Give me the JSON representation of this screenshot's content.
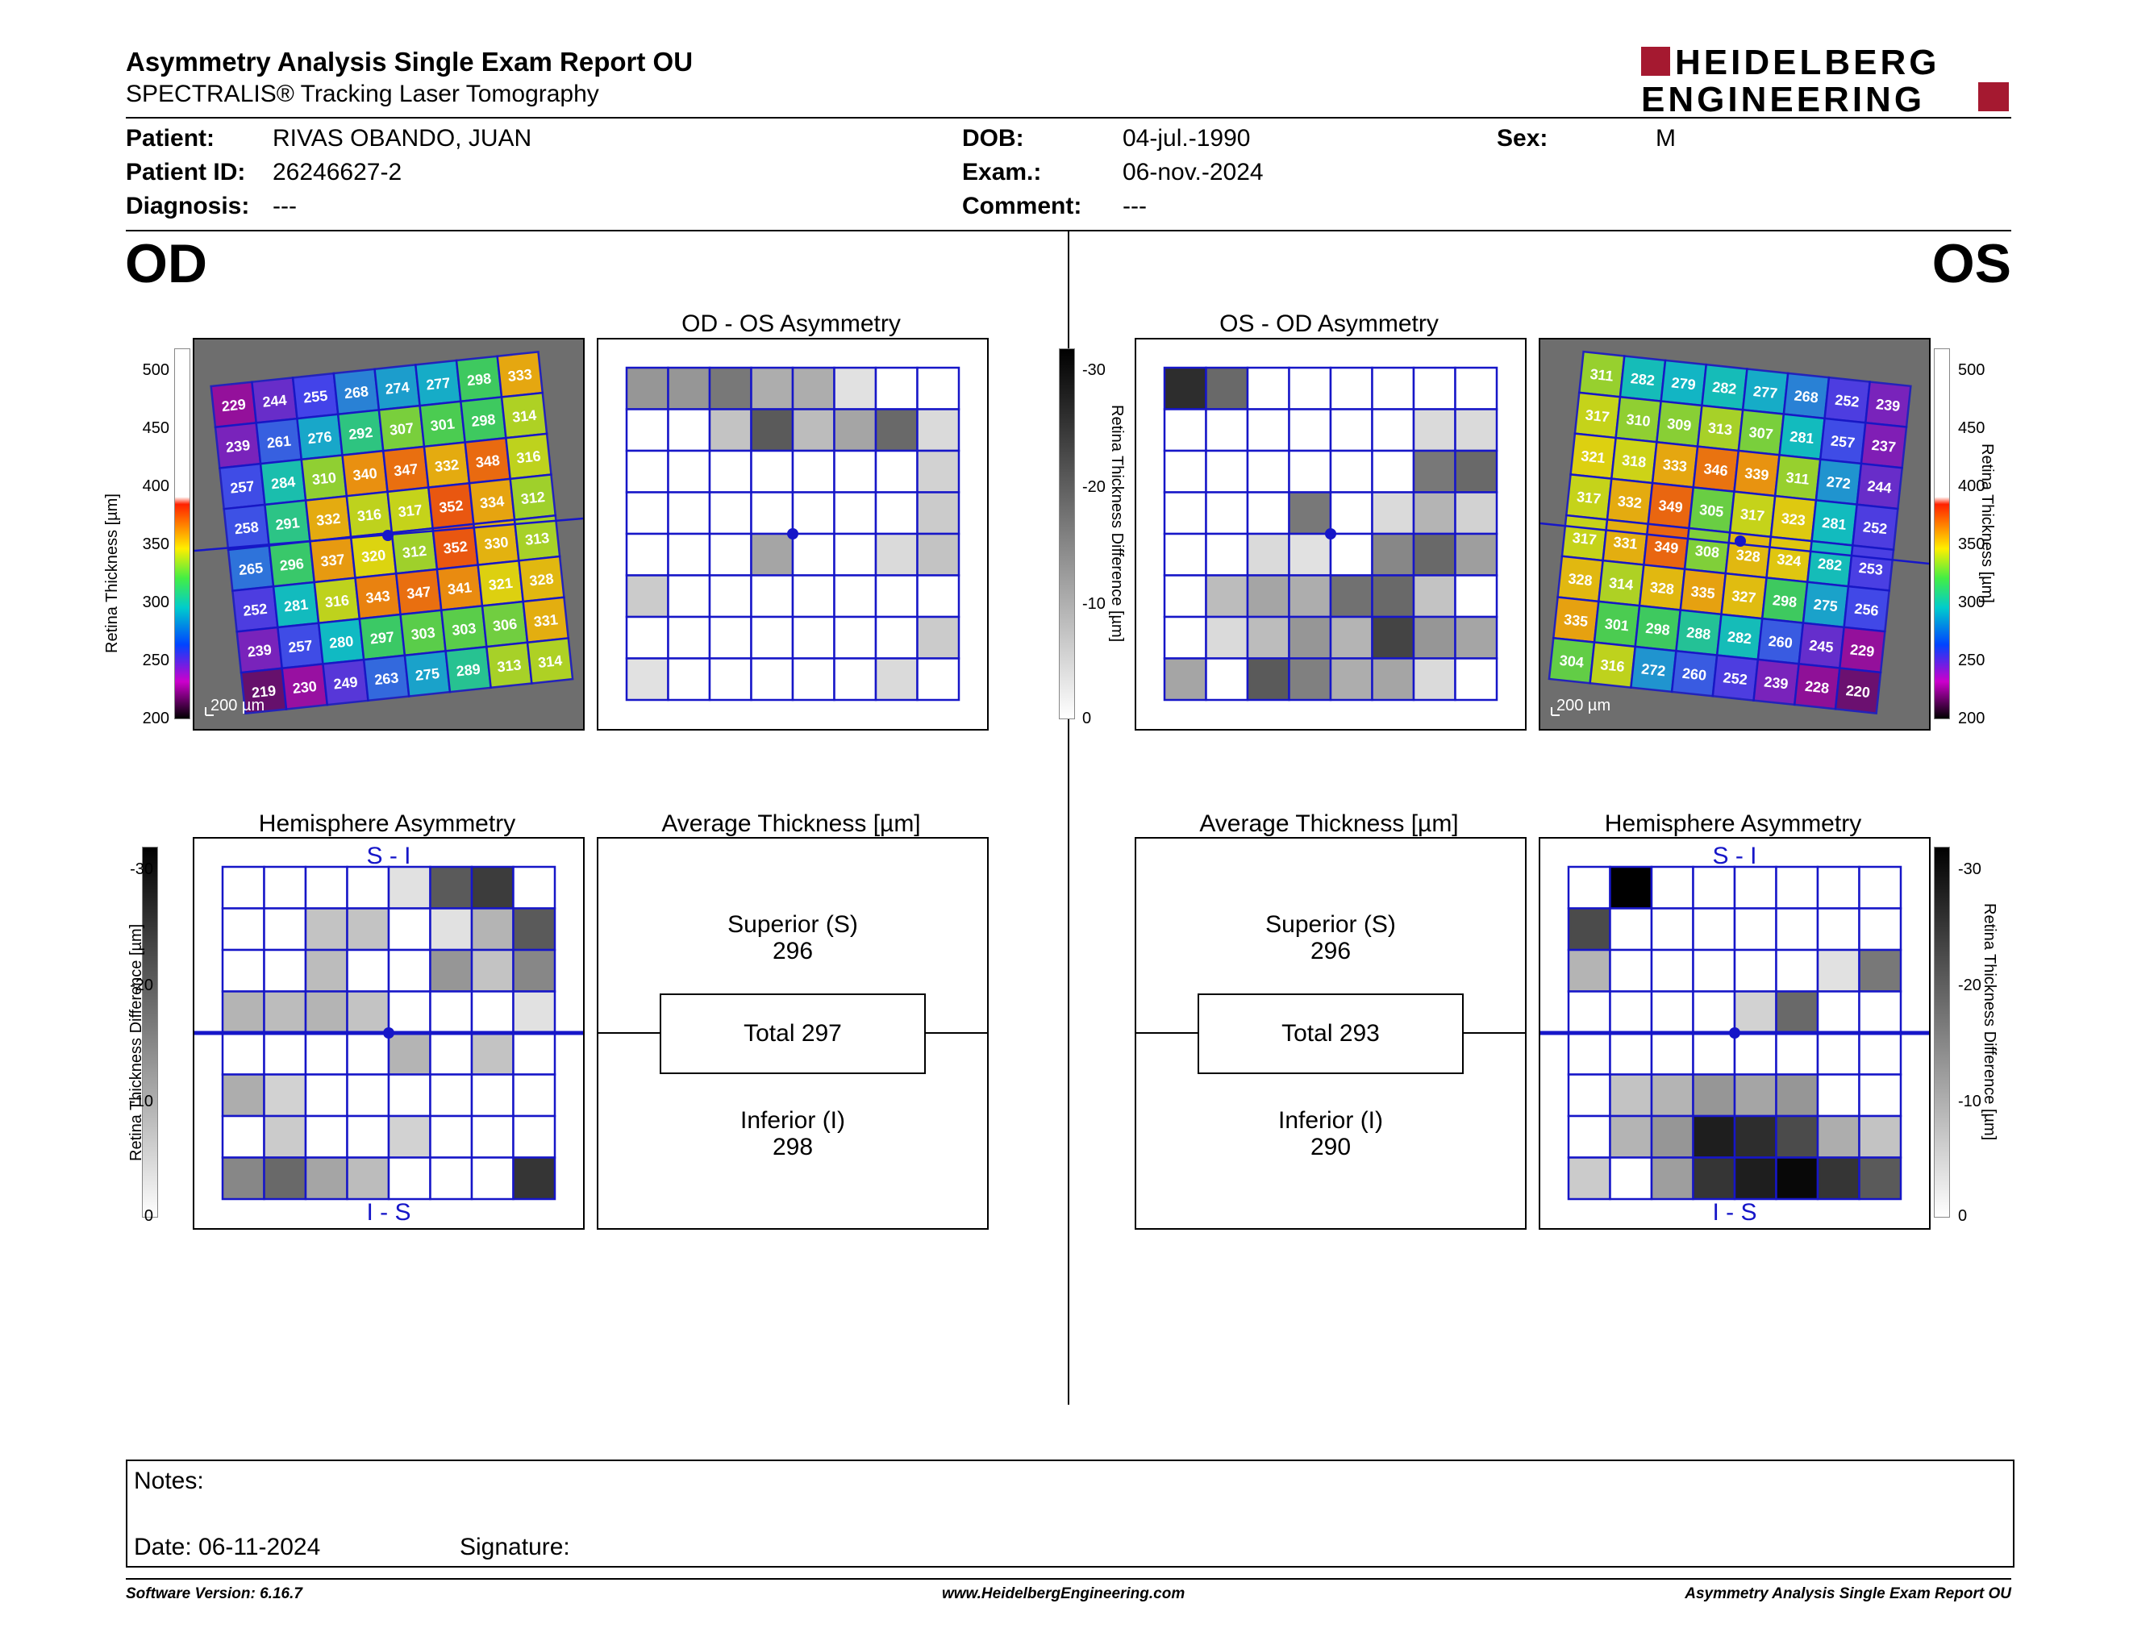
{
  "header": {
    "title": "Asymmetry Analysis Single Exam Report OU",
    "subtitle": "SPECTRALIS® Tracking Laser Tomography",
    "logo_line1": "HEIDELBERG",
    "logo_line2": "ENGINEERING",
    "logo_color": "#a51930"
  },
  "patient": {
    "patient_label": "Patient:",
    "patient_name": "RIVAS OBANDO, JUAN",
    "id_label": "Patient ID:",
    "id_value": "26246627-2",
    "diagnosis_label": "Diagnosis:",
    "diagnosis_value": "---",
    "dob_label": "DOB:",
    "dob_value": "04-jul.-1990",
    "exam_label": "Exam.:",
    "exam_value": "06-nov.-2024",
    "comment_label": "Comment:",
    "comment_value": "---",
    "sex_label": "Sex:",
    "sex_value": "M"
  },
  "od": {
    "eye_label": "OD",
    "asym_title": "OD - OS Asymmetry",
    "hemi_title": "Hemisphere Asymmetry",
    "avg_title": "Average Thickness [µm]",
    "superior_label": "Superior (S)",
    "superior_value": "296",
    "total_label": "Total 297",
    "inferior_label": "Inferior (I)",
    "inferior_value": "298",
    "scale_bar": "200 µm",
    "thickness": [
      [
        229,
        244,
        255,
        268,
        274,
        277,
        298,
        333
      ],
      [
        239,
        261,
        276,
        292,
        307,
        301,
        298,
        314
      ],
      [
        257,
        284,
        310,
        340,
        347,
        332,
        348,
        316
      ],
      [
        258,
        291,
        332,
        316,
        317,
        352,
        334,
        312
      ],
      [
        265,
        296,
        337,
        320,
        312,
        352,
        330,
        313
      ],
      [
        252,
        281,
        316,
        343,
        347,
        341,
        321,
        328
      ],
      [
        239,
        257,
        280,
        297,
        303,
        303,
        306,
        331
      ],
      [
        219,
        230,
        249,
        263,
        275,
        289,
        313,
        314
      ]
    ],
    "asym_grid": [
      [
        14,
        14,
        18,
        11,
        11,
        4,
        0,
        0
      ],
      [
        0,
        0,
        8,
        22,
        9,
        12,
        20,
        5
      ],
      [
        0,
        0,
        0,
        0,
        0,
        0,
        0,
        6
      ],
      [
        0,
        0,
        0,
        0,
        0,
        0,
        0,
        7
      ],
      [
        0,
        0,
        0,
        12,
        0,
        0,
        5,
        8
      ],
      [
        7,
        0,
        0,
        0,
        0,
        0,
        0,
        0
      ],
      [
        0,
        0,
        0,
        0,
        0,
        0,
        0,
        7
      ],
      [
        4,
        0,
        0,
        0,
        0,
        0,
        5,
        0
      ]
    ],
    "hemi_grid": [
      [
        0,
        0,
        0,
        0,
        4,
        22,
        26,
        0
      ],
      [
        0,
        0,
        8,
        8,
        0,
        4,
        10,
        22
      ],
      [
        0,
        0,
        9,
        0,
        0,
        14,
        8,
        16
      ],
      [
        10,
        9,
        10,
        8,
        0,
        0,
        0,
        4
      ],
      [
        0,
        0,
        0,
        0,
        10,
        0,
        8,
        0
      ],
      [
        11,
        6,
        0,
        0,
        0,
        0,
        0,
        0
      ],
      [
        0,
        7,
        0,
        0,
        6,
        0,
        0,
        0
      ],
      [
        16,
        20,
        12,
        9,
        0,
        0,
        0,
        27
      ]
    ]
  },
  "os": {
    "eye_label": "OS",
    "asym_title": "OS - OD Asymmetry",
    "hemi_title": "Hemisphere Asymmetry",
    "avg_title": "Average Thickness [µm]",
    "superior_label": "Superior (S)",
    "superior_value": "296",
    "total_label": "Total 293",
    "inferior_label": "Inferior (I)",
    "inferior_value": "290",
    "scale_bar": "200 µm",
    "thickness": [
      [
        311,
        282,
        279,
        282,
        277,
        268,
        252,
        239
      ],
      [
        317,
        310,
        309,
        313,
        307,
        281,
        257,
        237
      ],
      [
        321,
        318,
        333,
        346,
        339,
        311,
        272,
        244
      ],
      [
        317,
        332,
        349,
        305,
        317,
        323,
        281,
        252
      ],
      [
        317,
        331,
        349,
        308,
        328,
        324,
        282,
        253
      ],
      [
        328,
        314,
        328,
        335,
        327,
        298,
        275,
        256
      ],
      [
        335,
        301,
        298,
        288,
        282,
        260,
        245,
        229
      ],
      [
        304,
        316,
        272,
        260,
        252,
        239,
        228,
        220
      ]
    ],
    "asym_grid": [
      [
        28,
        20,
        0,
        0,
        0,
        0,
        0,
        0
      ],
      [
        0,
        0,
        0,
        0,
        0,
        0,
        5,
        5
      ],
      [
        0,
        0,
        0,
        0,
        0,
        0,
        18,
        20
      ],
      [
        0,
        0,
        0,
        18,
        0,
        5,
        10,
        6
      ],
      [
        0,
        0,
        5,
        4,
        0,
        16,
        20,
        13
      ],
      [
        0,
        9,
        12,
        11,
        19,
        20,
        8,
        0
      ],
      [
        0,
        5,
        9,
        14,
        10,
        25,
        14,
        12
      ],
      [
        12,
        0,
        22,
        17,
        11,
        12,
        5,
        0
      ]
    ],
    "hemi_grid": [
      [
        0,
        34,
        0,
        0,
        0,
        0,
        0,
        0
      ],
      [
        24,
        0,
        0,
        0,
        0,
        0,
        0,
        0
      ],
      [
        10,
        0,
        0,
        0,
        0,
        0,
        4,
        18
      ],
      [
        0,
        0,
        0,
        0,
        6,
        20,
        0,
        0
      ],
      [
        0,
        0,
        0,
        0,
        0,
        0,
        0,
        0
      ],
      [
        0,
        8,
        10,
        14,
        12,
        14,
        0,
        0
      ],
      [
        0,
        10,
        14,
        30,
        28,
        24,
        11,
        8
      ],
      [
        7,
        0,
        13,
        27,
        30,
        33,
        27,
        22
      ]
    ]
  },
  "scales": {
    "thickness_label": "Retina Thickness [µm]",
    "thickness_ticks": [
      "500",
      "450",
      "400",
      "350",
      "300",
      "250",
      "200"
    ],
    "diff_label": "Retina Thickness Difference [µm]",
    "diff_ticks": [
      "-30",
      "-20",
      "-10",
      "0"
    ],
    "hemi_top": "S - I",
    "hemi_bottom": "I - S"
  },
  "notes": {
    "notes_label": "Notes:",
    "date_label": "Date: 06-11-2024",
    "signature_label": "Signature:"
  },
  "footer": {
    "software": "Software Version: 6.16.7",
    "website": "www.HeidelbergEngineering.com",
    "report": "Asymmetry Analysis Single Exam Report OU"
  },
  "colors": {
    "grid_blue": "#1616c8",
    "heidelberg_red": "#a51930"
  }
}
